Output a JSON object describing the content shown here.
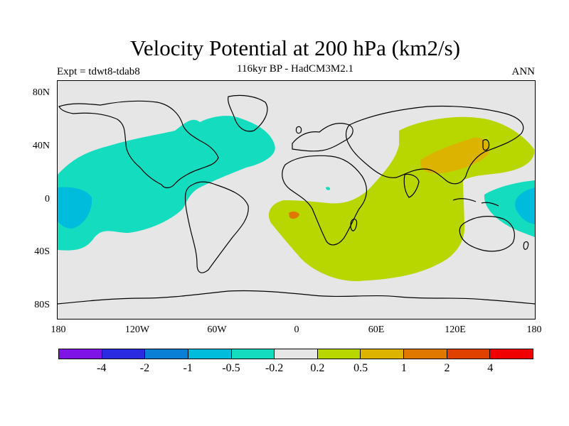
{
  "title": "Velocity Potential at 200 hPa (km2/s)",
  "subtitle": "116kyr BP - HadCM3M2.1",
  "experiment_label": "Expt = tdwt8-tdab8",
  "season_label": "ANN",
  "lat_ticks": [
    "80N",
    "40N",
    "0",
    "40S",
    "80S"
  ],
  "lon_ticks": [
    "180",
    "120W",
    "60W",
    "0",
    "60E",
    "120E",
    "180"
  ],
  "colorbar": {
    "colors": [
      "#7f14e6",
      "#2a2ae0",
      "#0a7fd6",
      "#00bcdc",
      "#14dcbe",
      "#e6e6e6",
      "#b8d600",
      "#dcb400",
      "#e07800",
      "#e04000",
      "#f00000"
    ],
    "labels": [
      "-4",
      "-2",
      "-1",
      "-0.5",
      "-0.2",
      "0.2",
      "0.5",
      "1",
      "2",
      "4"
    ]
  },
  "colors": {
    "background": "#ffffff",
    "map_fill": "#e6e6e6",
    "negative_region": "#14dcbe",
    "strong_negative_region": "#00bcdc",
    "positive_region": "#b8d600",
    "strong_positive_region": "#dcb400",
    "peak_positive_region": "#e07800"
  }
}
